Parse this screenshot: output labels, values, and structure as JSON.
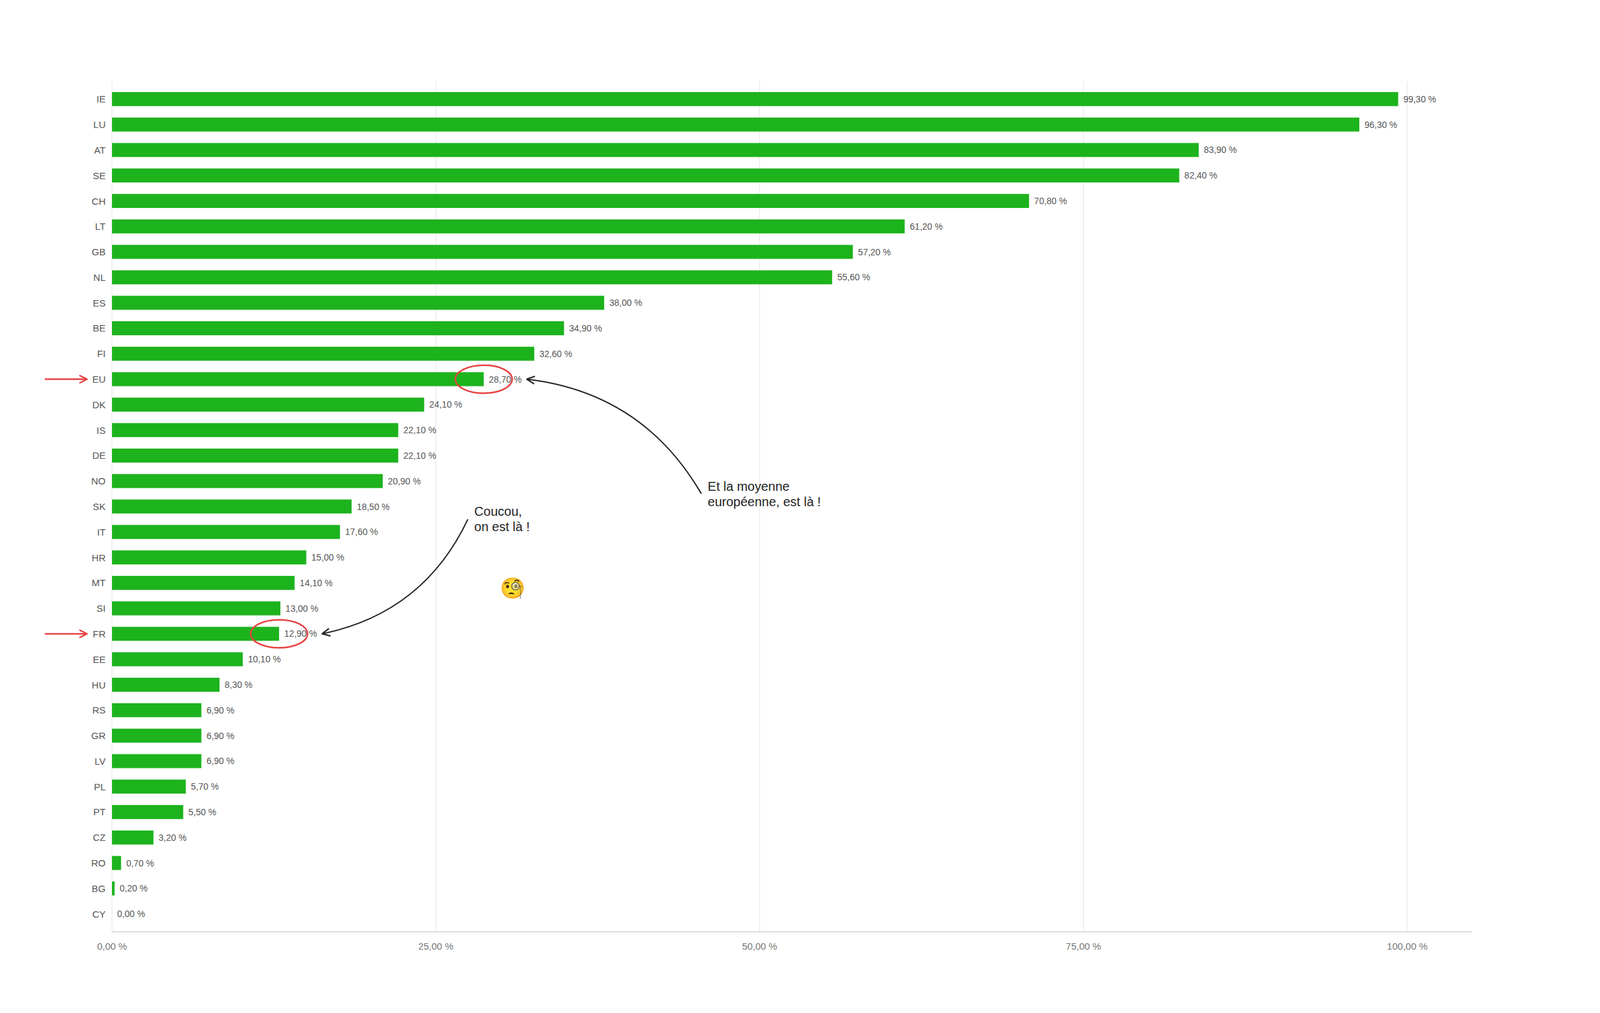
{
  "chart_data": {
    "type": "bar",
    "orientation": "horizontal",
    "categories": [
      "IE",
      "LU",
      "AT",
      "SE",
      "CH",
      "LT",
      "GB",
      "NL",
      "ES",
      "BE",
      "FI",
      "EU",
      "DK",
      "IS",
      "DE",
      "NO",
      "SK",
      "IT",
      "HR",
      "MT",
      "SI",
      "FR",
      "EE",
      "HU",
      "RS",
      "GR",
      "LV",
      "PL",
      "PT",
      "CZ",
      "RO",
      "BG",
      "CY"
    ],
    "values": [
      99.3,
      96.3,
      83.9,
      82.4,
      70.8,
      61.2,
      57.2,
      55.6,
      38.0,
      34.9,
      32.6,
      28.7,
      24.1,
      22.1,
      22.1,
      20.9,
      18.5,
      17.6,
      15.0,
      14.1,
      13.0,
      12.9,
      10.1,
      8.3,
      6.9,
      6.9,
      6.9,
      5.7,
      5.5,
      3.2,
      0.7,
      0.2,
      0.0
    ],
    "value_labels": [
      "99,30 %",
      "96,30 %",
      "83,90 %",
      "82,40 %",
      "70,80 %",
      "61,20 %",
      "57,20 %",
      "55,60 %",
      "38,00 %",
      "34,90 %",
      "32,60 %",
      "28,70 %",
      "24,10 %",
      "22,10 %",
      "22,10 %",
      "20,90 %",
      "18,50 %",
      "17,60 %",
      "15,00 %",
      "14,10 %",
      "13,00 %",
      "12,90 %",
      "10,10 %",
      "8,30 %",
      "6,90 %",
      "6,90 %",
      "6,90 %",
      "5,70 %",
      "5,50 %",
      "3,20 %",
      "0,70 %",
      "0,20 %",
      "0,00 %"
    ],
    "color": "#1db31d",
    "data_labels": true,
    "xlim": [
      0,
      105
    ],
    "xticks": [
      {
        "value": 0,
        "label": "0,00 %"
      },
      {
        "value": 25,
        "label": "25,00 %"
      },
      {
        "value": 50,
        "label": "50,00 %"
      },
      {
        "value": 75,
        "label": "75,00 %"
      },
      {
        "value": 100,
        "label": "100,00 %"
      }
    ],
    "grid": true,
    "annotations": [
      {
        "text": "Et la moyenne\neuropéenne, est là !",
        "category": "EU",
        "color": "#e84040"
      },
      {
        "text": "Coucou,\non est là !",
        "category": "FR",
        "color": "#e84040"
      },
      {
        "text": "🧐",
        "category": "FR"
      }
    ]
  }
}
